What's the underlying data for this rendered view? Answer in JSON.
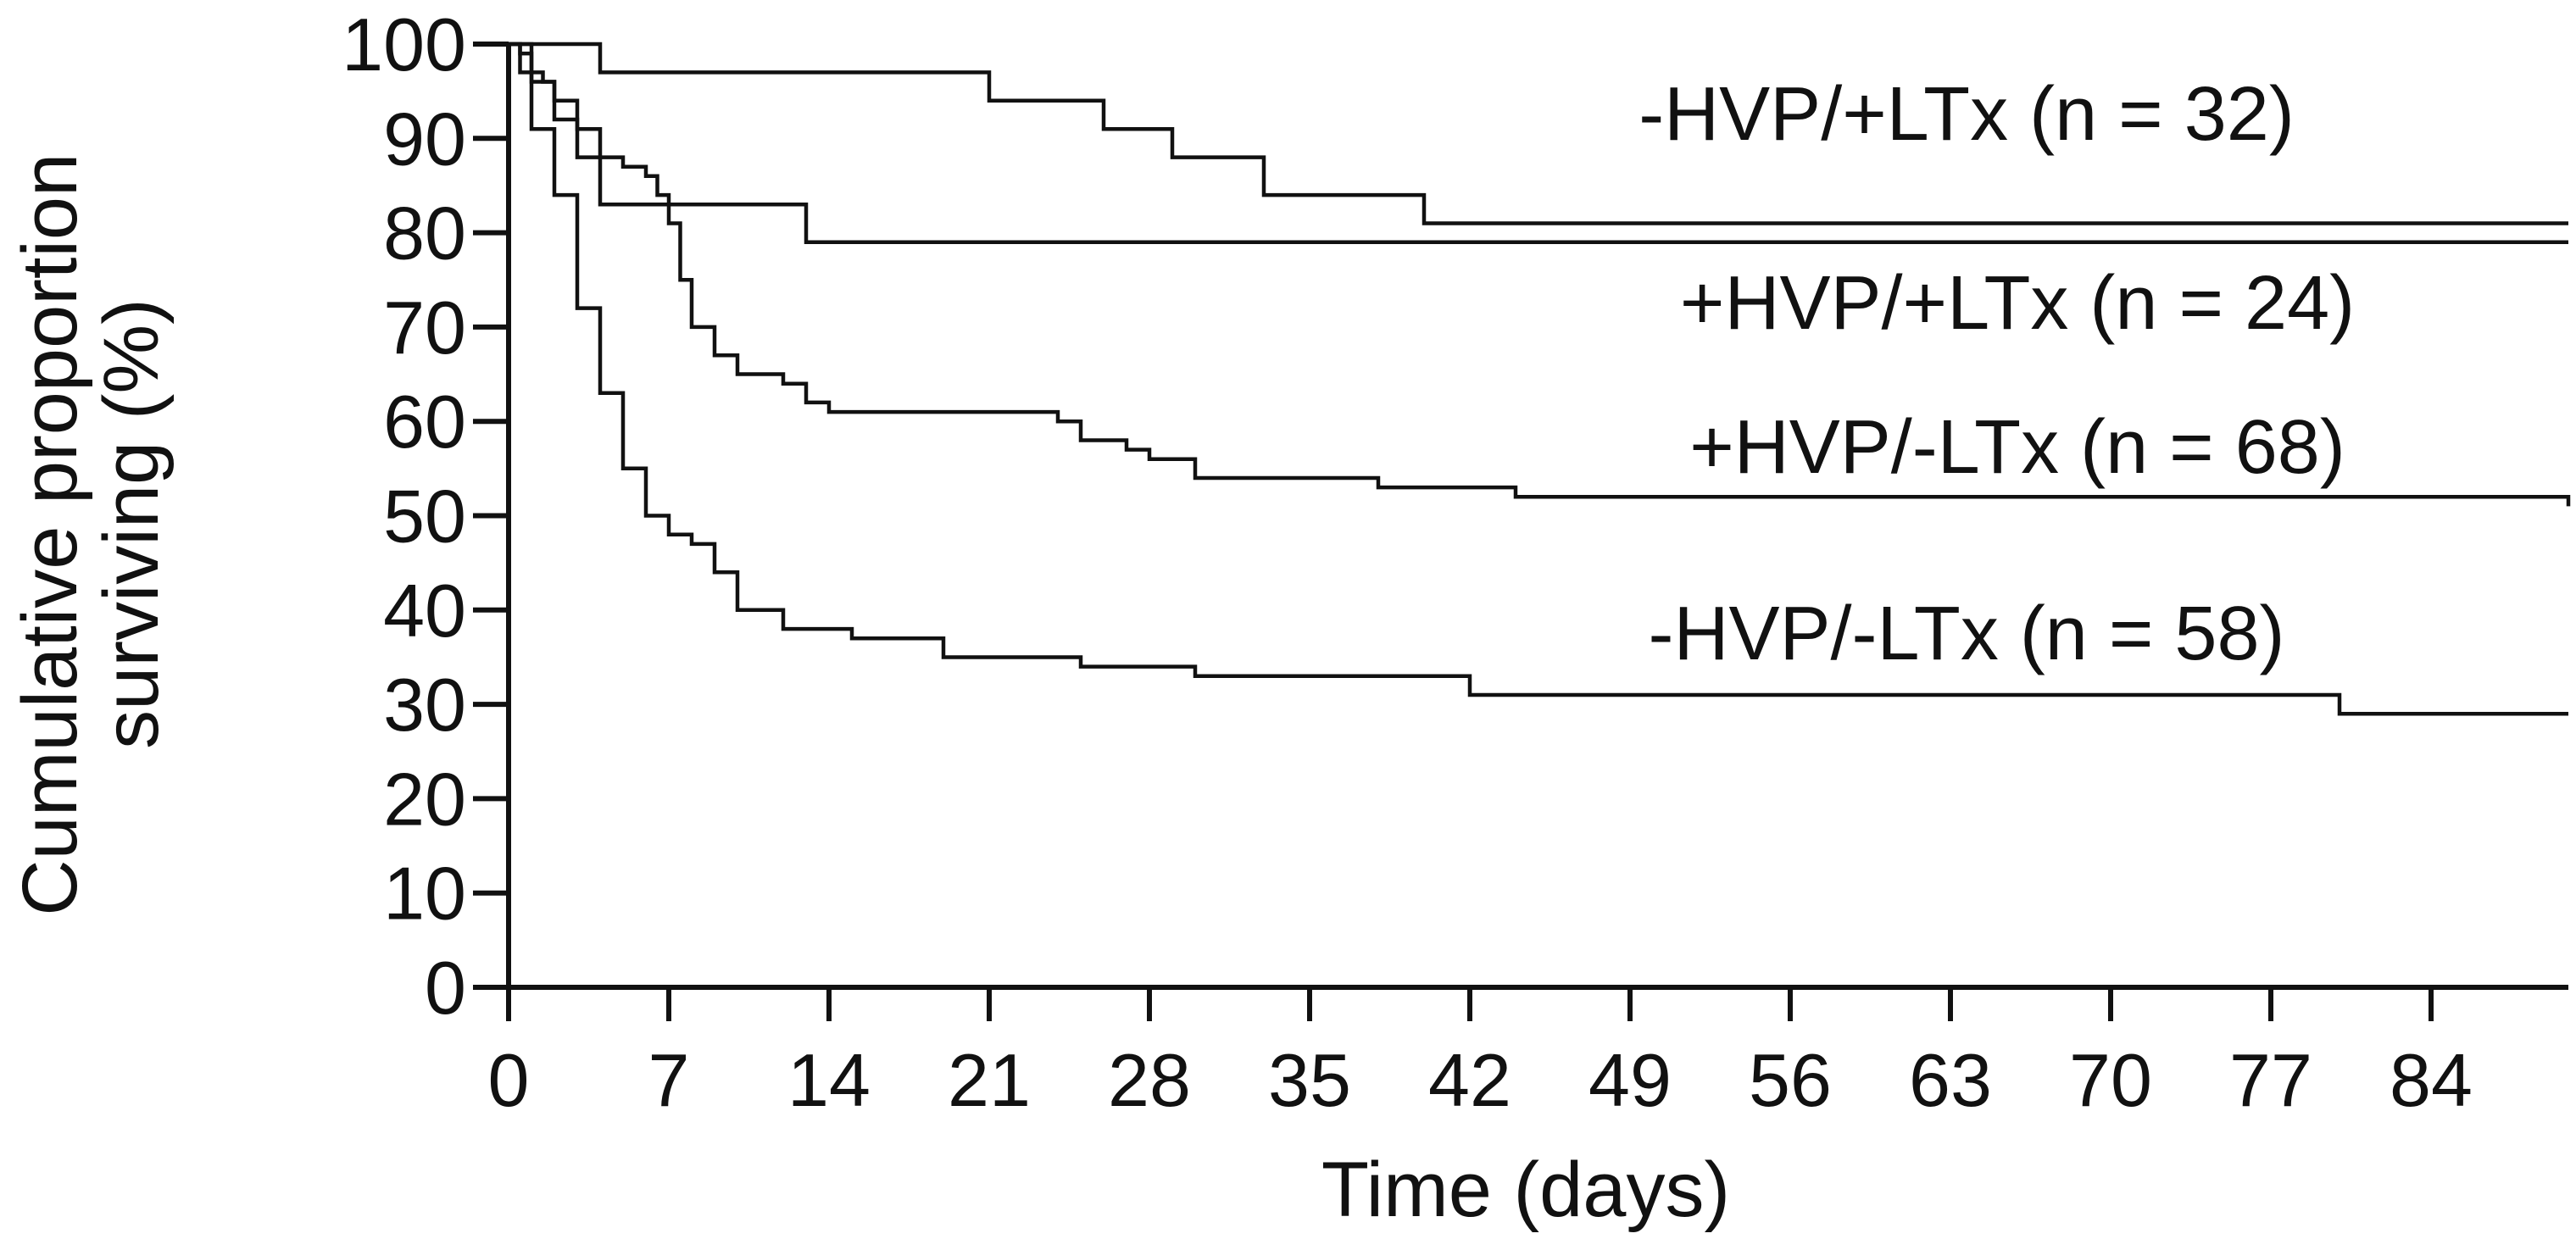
{
  "chart_data": {
    "type": "line",
    "step": true,
    "xlabel": "Time (days)",
    "ylabel": [
      "Cumulative proportion",
      "surviving (%)"
    ],
    "xlim": [
      0,
      90
    ],
    "ylim": [
      0,
      100
    ],
    "xticks": [
      0,
      7,
      14,
      21,
      28,
      35,
      42,
      49,
      56,
      63,
      70,
      77,
      84
    ],
    "yticks": [
      0,
      10,
      20,
      30,
      40,
      50,
      60,
      70,
      80,
      90,
      100
    ],
    "grid": false,
    "legend": "inline labels at right",
    "series": [
      {
        "name": "-HVP/+LTx (n = 32)",
        "x": [
          0,
          4,
          21,
          26,
          29,
          33,
          40,
          85,
          90
        ],
        "y": [
          100,
          97,
          94,
          91,
          88,
          84,
          81,
          81,
          81
        ]
      },
      {
        "name": "+HVP/+LTx (n = 24)",
        "x": [
          0,
          1,
          2,
          3,
          4,
          13,
          26,
          90
        ],
        "y": [
          100,
          96,
          92,
          88,
          83,
          79,
          79,
          79
        ]
      },
      {
        "name": "+HVP/-LTx (n = 68)",
        "x": [
          0,
          0.5,
          1,
          1.5,
          2,
          3,
          4,
          5,
          6,
          6.5,
          7,
          7.5,
          8,
          9,
          10,
          12,
          13,
          14,
          24,
          25,
          27,
          28,
          30,
          38,
          44,
          90
        ],
        "y": [
          100,
          99,
          97,
          96,
          94,
          91,
          88,
          87,
          86,
          84,
          81,
          75,
          70,
          67,
          65,
          64,
          62,
          61,
          60,
          58,
          57,
          56,
          54,
          53,
          52,
          51
        ]
      },
      {
        "name": "-HVP/-LTx (n = 58)",
        "x": [
          0,
          0.5,
          1,
          2,
          3,
          4,
          5,
          6,
          7,
          8,
          9,
          10,
          12,
          15,
          19,
          25,
          30,
          37,
          42,
          80,
          90
        ],
        "y": [
          100,
          97,
          91,
          84,
          72,
          63,
          55,
          50,
          48,
          47,
          44,
          40,
          38,
          37,
          35,
          34,
          33,
          33,
          31,
          29,
          29
        ]
      }
    ]
  }
}
